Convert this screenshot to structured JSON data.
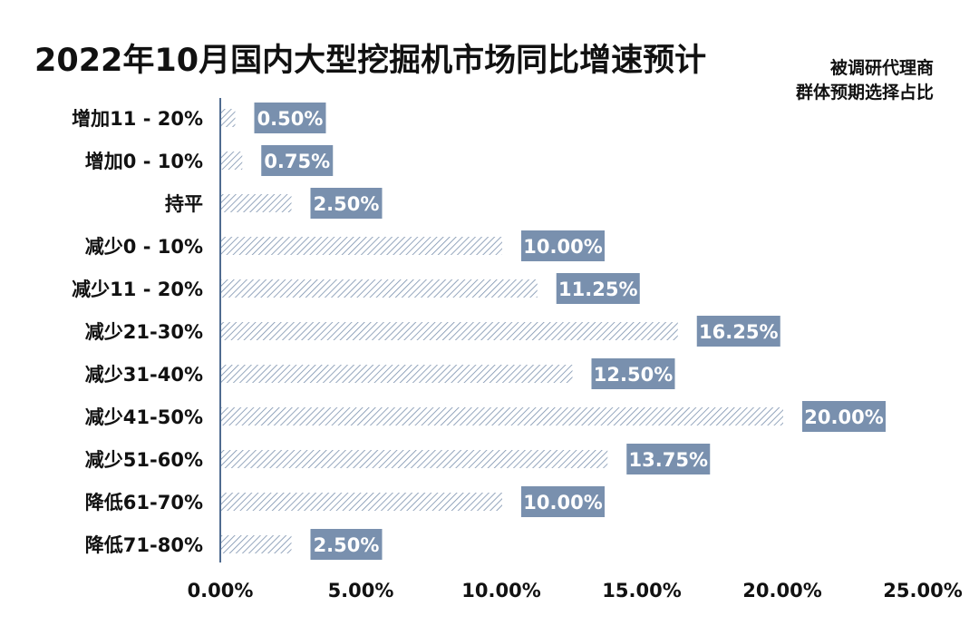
{
  "chart_data": {
    "type": "bar",
    "orientation": "horizontal",
    "title": "2022年10月国内大型挖掘机市场同比增速预计",
    "legend_lines": [
      "被调研代理商",
      "群体预期选择占比"
    ],
    "categories": [
      "增加11 - 20%",
      "增加0 - 10%",
      "持平",
      "减少0 - 10%",
      "减少11 - 20%",
      "减少21-30%",
      "减少31-40%",
      "减少41-50%",
      "减少51-60%",
      "降低61-70%",
      "降低71-80%"
    ],
    "values": [
      0.5,
      0.75,
      2.5,
      10.0,
      11.25,
      16.25,
      12.5,
      20.0,
      13.75,
      10.0,
      2.5
    ],
    "value_labels": [
      "0.50%",
      "0.75%",
      "2.50%",
      "10.00%",
      "11.25%",
      "16.25%",
      "12.50%",
      "20.00%",
      "13.75%",
      "10.00%",
      "2.50%"
    ],
    "x_ticks": [
      "0.00%",
      "5.00%",
      "10.00%",
      "15.00%",
      "20.00%",
      "25.00%"
    ],
    "xlim": [
      0,
      25
    ],
    "grid": false,
    "legend_position": "top-right",
    "colors": {
      "bar_hatch": "#7a90ad",
      "label_box": "#7990ae",
      "label_text": "#ffffff",
      "axis": "#4f6b8f",
      "text": "#111111"
    }
  }
}
